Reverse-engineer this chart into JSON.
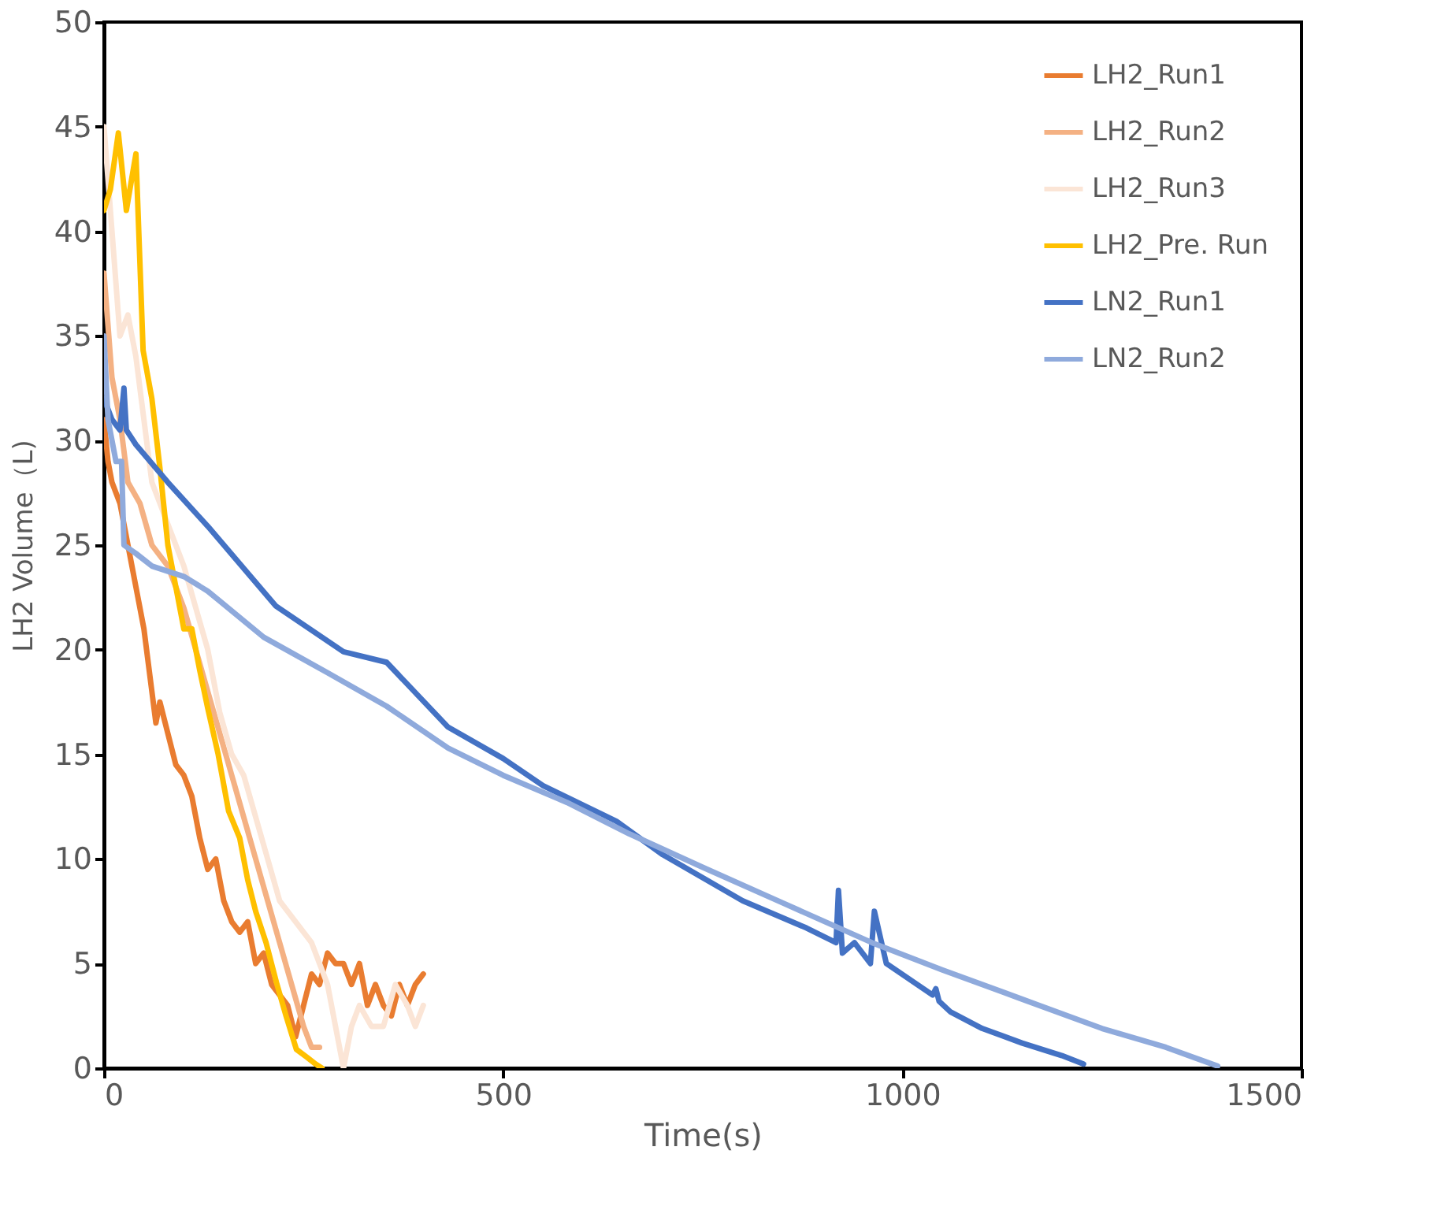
{
  "chart_data": {
    "type": "line",
    "xlabel": "Time(s)",
    "ylabel": "LH2 Volume（L)",
    "xlim": [
      0,
      1500
    ],
    "xticks": [
      0,
      500,
      1000,
      1500
    ],
    "ylim": [
      0,
      50
    ],
    "yticks": [
      0,
      5,
      10,
      15,
      20,
      25,
      30,
      35,
      40,
      45,
      50
    ],
    "grid": false,
    "legend": "top right",
    "marker": "none",
    "line_style": "solid",
    "series": [
      {
        "name": "LH2_Run1",
        "color": "#e97c30",
        "x": [
          0,
          5,
          10,
          20,
          30,
          40,
          50,
          60,
          65,
          70,
          80,
          90,
          100,
          110,
          120,
          130,
          140,
          150,
          160,
          170,
          180,
          190,
          200,
          210,
          220,
          230,
          240,
          250,
          260,
          270,
          280,
          290,
          300,
          310,
          320,
          330,
          340,
          350,
          360,
          370,
          380,
          390,
          400
        ],
        "values": [
          31,
          29,
          28,
          27,
          25,
          23,
          21,
          18,
          16.5,
          17.5,
          16,
          14.5,
          14,
          13,
          11,
          9.5,
          10,
          8,
          7,
          6.5,
          7,
          5,
          5.5,
          4,
          3.5,
          3,
          1.5,
          3,
          4.5,
          4,
          5.5,
          5,
          5,
          4,
          5,
          3,
          4,
          3,
          2.5,
          4,
          3,
          4,
          4.5
        ]
      },
      {
        "name": "LH2_Run2",
        "color": "#f4b183",
        "x": [
          0,
          10,
          20,
          30,
          45,
          60,
          80,
          100,
          115,
          130,
          145,
          160,
          175,
          190,
          205,
          220,
          235,
          250,
          260,
          270
        ],
        "values": [
          38,
          33,
          31,
          28,
          27,
          25,
          24,
          22,
          20,
          18,
          16,
          14,
          12,
          10,
          8,
          6,
          4,
          2,
          1,
          1
        ]
      },
      {
        "name": "LH2_Run3",
        "color": "#fbe5d6",
        "x": [
          0,
          10,
          20,
          30,
          40,
          60,
          80,
          100,
          115,
          130,
          145,
          160,
          175,
          190,
          205,
          220,
          240,
          260,
          270,
          280,
          290,
          300,
          310,
          320,
          335,
          350,
          365,
          380,
          390,
          400
        ],
        "values": [
          45,
          40,
          35,
          36,
          34,
          28,
          26,
          24,
          22,
          20,
          17,
          15,
          14,
          12,
          10,
          8,
          7,
          6,
          5,
          4,
          2,
          0,
          2,
          3,
          2,
          2,
          4,
          3,
          2,
          3
        ]
      },
      {
        "name": "LH2_Pre. Run",
        "color": "#ffc000",
        "x": [
          0,
          8,
          18,
          28,
          40,
          49,
          60,
          70,
          80,
          91,
          100,
          110,
          120,
          130,
          143,
          156,
          170,
          180,
          190,
          203,
          216,
          228,
          241,
          255,
          265,
          273
        ],
        "values": [
          41,
          42,
          44.7,
          41,
          43.7,
          34.3,
          32,
          28.7,
          25,
          22.8,
          21,
          21,
          19,
          17.2,
          15,
          12.3,
          11,
          9,
          7.5,
          6,
          4.1,
          2.5,
          0.9,
          0.5,
          0.2,
          0
        ]
      },
      {
        "name": "LN2_Run1",
        "color": "#4472c4",
        "x": [
          0,
          10,
          20,
          25,
          28,
          40,
          80,
          130,
          215,
          300,
          354,
          431,
          500,
          550,
          642,
          700,
          800,
          880,
          917,
          920,
          925,
          940,
          960,
          965,
          980,
          1038,
          1042,
          1046,
          1060,
          1100,
          1150,
          1200,
          1227
        ],
        "values": [
          32,
          31,
          30.5,
          32.5,
          30.5,
          29.8,
          28,
          25.9,
          22.1,
          19.9,
          19.4,
          16.3,
          14.8,
          13.5,
          11.8,
          10.2,
          8.0,
          6.7,
          6.0,
          8.5,
          5.5,
          6.0,
          5.0,
          7.5,
          5.0,
          3.5,
          3.8,
          3.2,
          2.7,
          1.9,
          1.2,
          0.6,
          0.2
        ]
      },
      {
        "name": "LN2_Run2",
        "color": "#8faadc",
        "x": [
          0,
          5,
          15,
          22,
          25,
          40,
          60,
          100,
          130,
          200,
          280,
          354,
          431,
          500,
          580,
          658,
          750,
          850,
          962,
          1050,
          1150,
          1250,
          1330,
          1395
        ],
        "values": [
          35,
          31,
          29,
          29,
          25,
          24.6,
          24,
          23.5,
          22.8,
          20.6,
          18.9,
          17.3,
          15.3,
          14.0,
          12.7,
          11.2,
          9.6,
          7.9,
          6.0,
          4.7,
          3.3,
          1.9,
          1.0,
          0.1
        ]
      }
    ]
  }
}
